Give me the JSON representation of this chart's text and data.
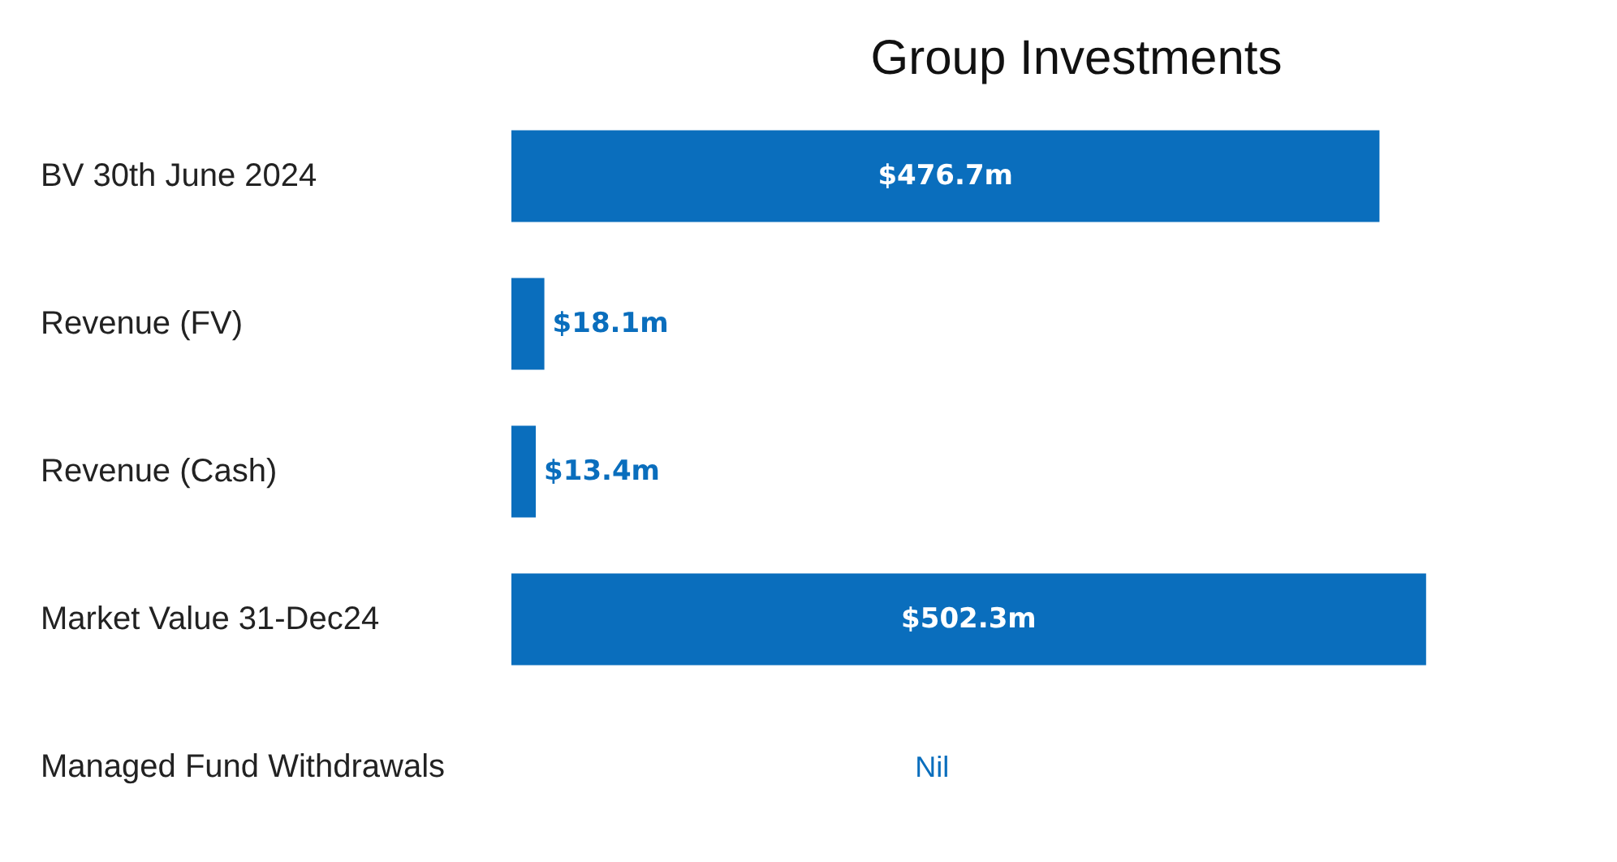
{
  "chart_data": {
    "type": "bar",
    "orientation": "horizontal",
    "title": "Group Investments",
    "categories": [
      "BV 30th June 2024",
      "Revenue (FV)",
      "Revenue (Cash)",
      "Market Value 31-Dec24",
      "Managed Fund Withdrawals"
    ],
    "values": [
      476.7,
      18.1,
      13.4,
      502.3,
      null
    ],
    "value_labels": [
      "$476.7m",
      "$18.1m",
      "$13.4m",
      "$502.3m",
      "Nil"
    ],
    "color": "#0a6ebd"
  }
}
